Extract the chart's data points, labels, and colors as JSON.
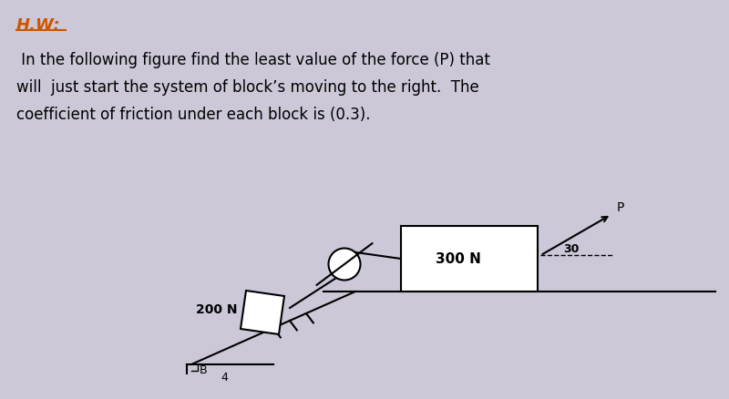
{
  "bg_color": "#ccc8d8",
  "title_text": "H.W:",
  "title_color": "#cc5500",
  "title_fontsize": 13,
  "body_line1": " In the following figure find the least value of the force (P) that",
  "body_line2": "will  just start the system of block’s moving to the right.  The",
  "body_line3": "coefficient of friction under each block is (0.3).",
  "body_fontsize": 12,
  "block1_label": "300 N",
  "block2_label": "200 N",
  "angle_label": "30",
  "force_label": "P",
  "slope_b_label": "B",
  "slope_4_label": "4"
}
